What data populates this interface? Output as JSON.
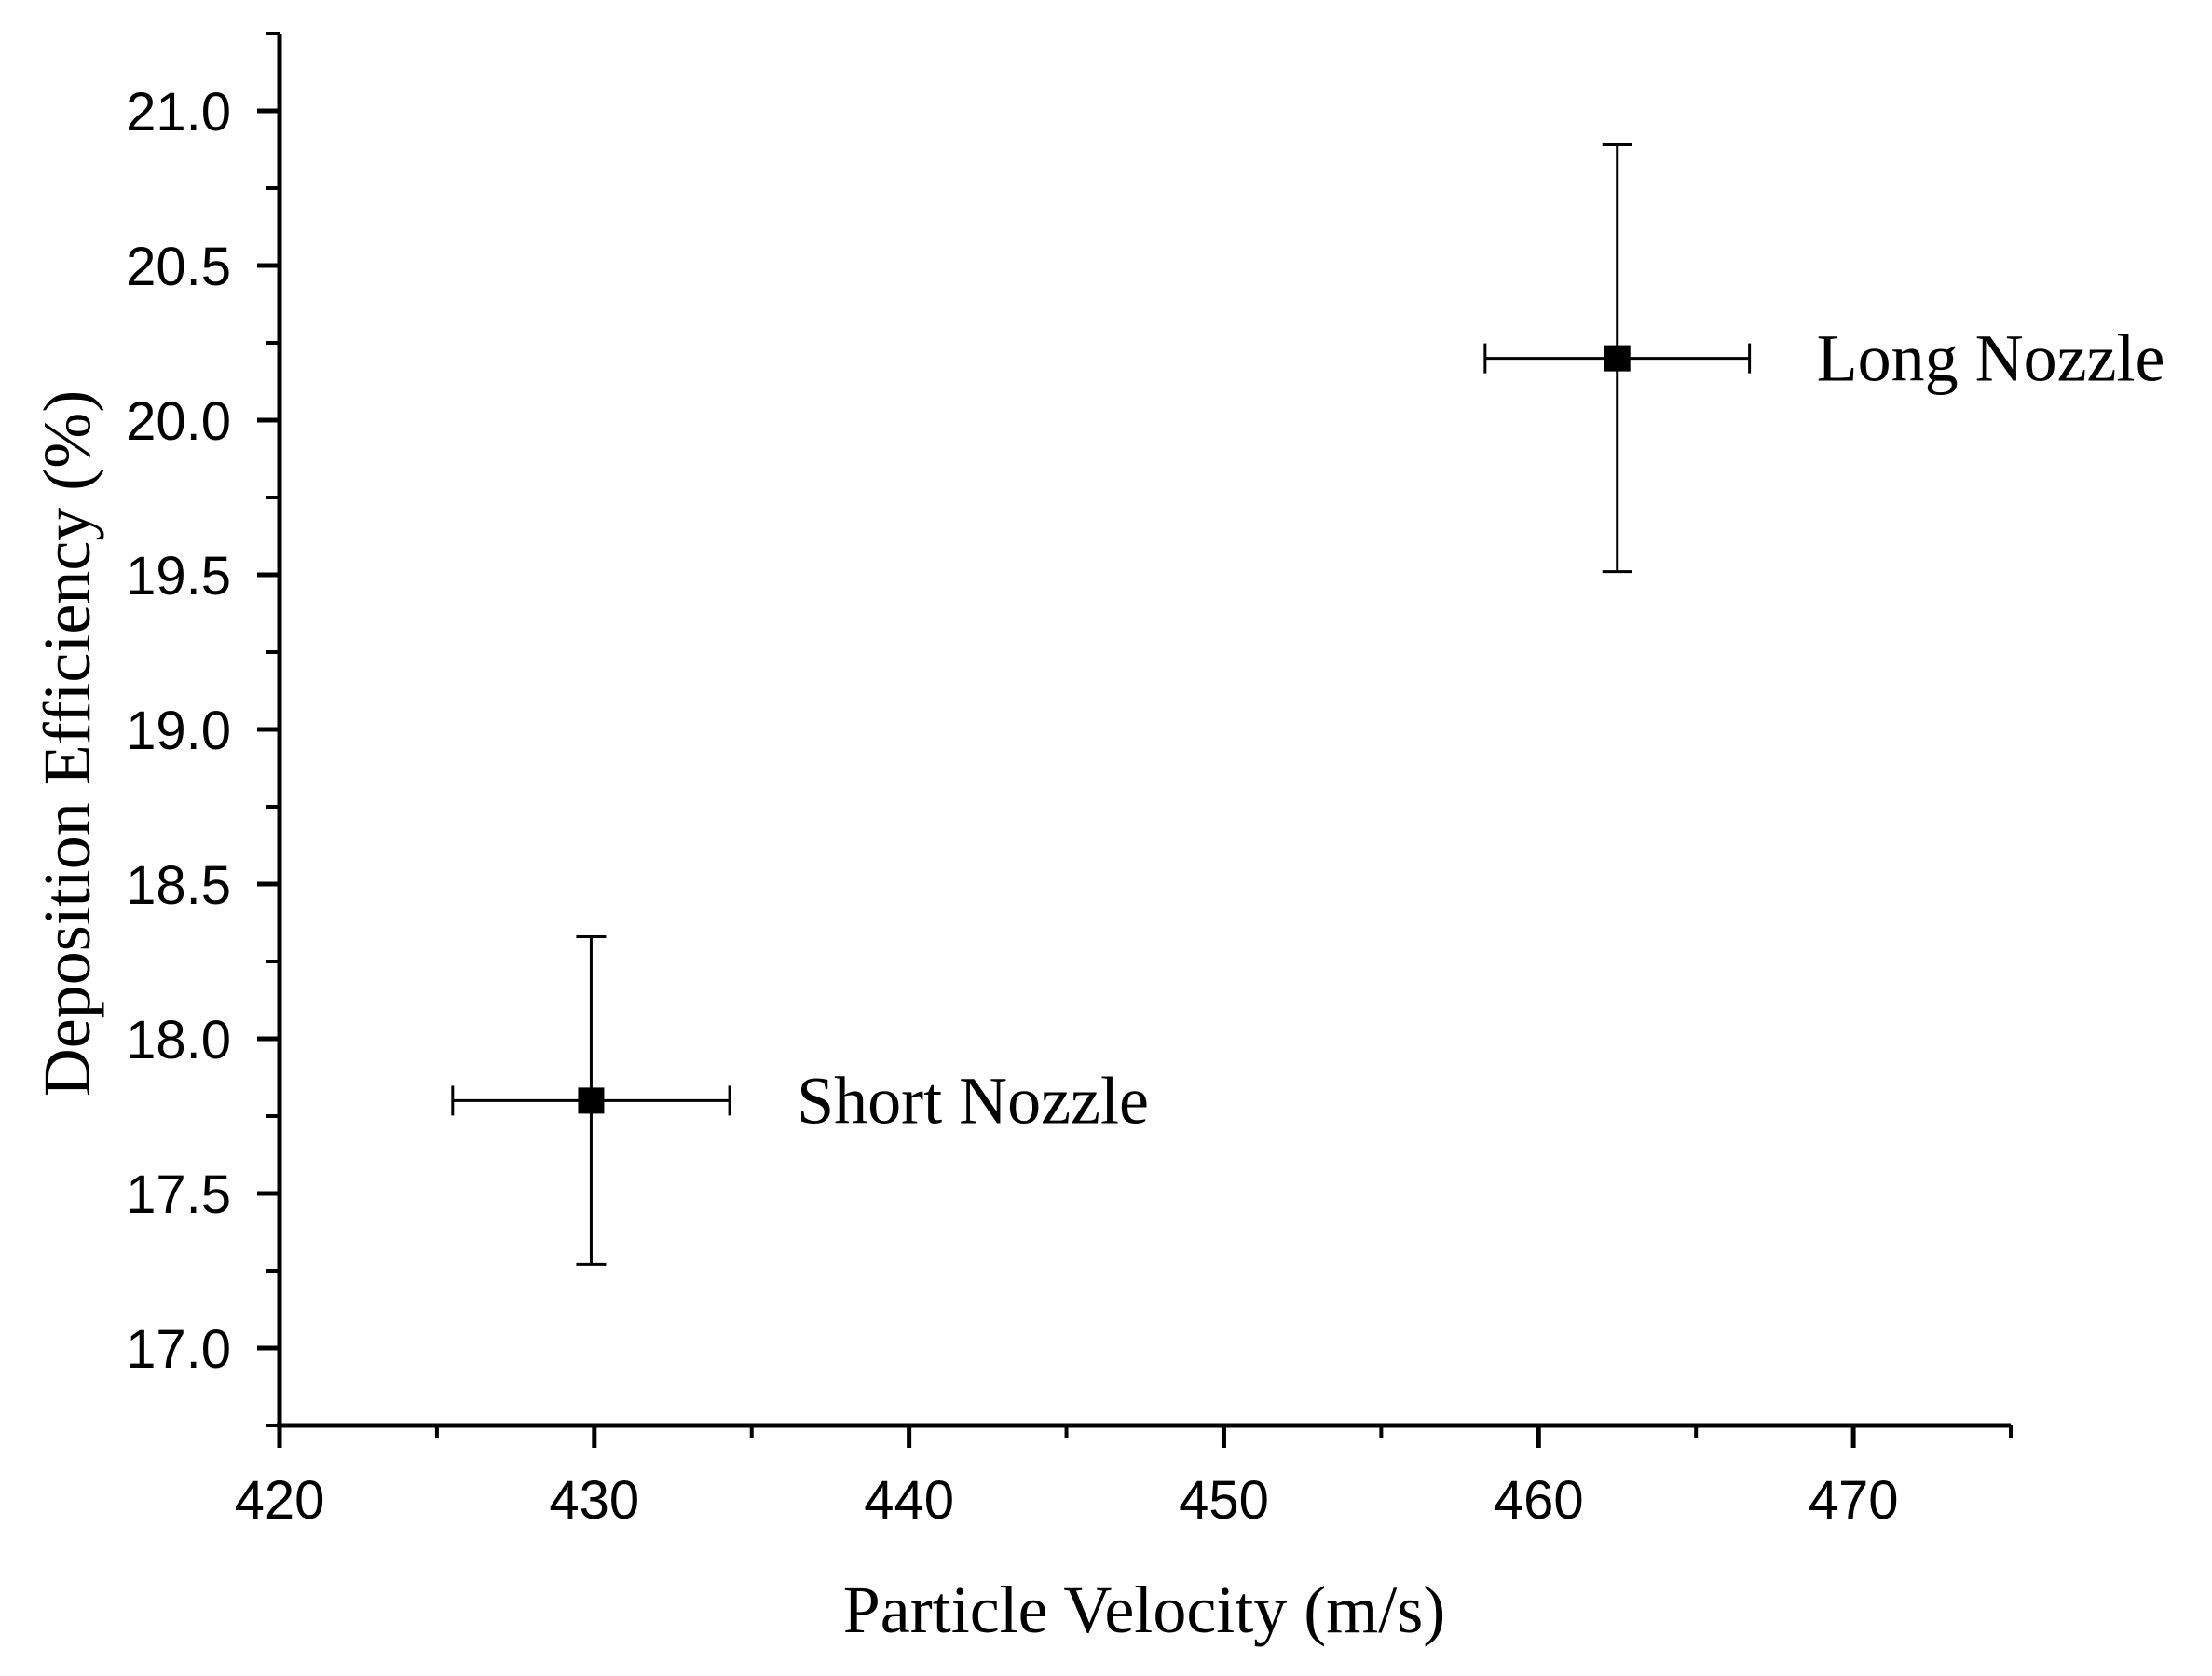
{
  "chart_data": {
    "type": "scatter",
    "title": "",
    "xlabel": "Particle Velocity (m/s)",
    "ylabel": "Deposition Efficiency (%)",
    "xlim": [
      420,
      475
    ],
    "ylim": [
      16.75,
      21.25
    ],
    "x_ticks": [
      420,
      430,
      440,
      450,
      460,
      470
    ],
    "x_tick_labels": [
      "420",
      "430",
      "440",
      "450",
      "460",
      "470"
    ],
    "x_minor_ticks": [
      425,
      435,
      445,
      455,
      465,
      475
    ],
    "y_ticks": [
      17.0,
      17.5,
      18.0,
      18.5,
      19.0,
      19.5,
      20.0,
      20.5,
      21.0
    ],
    "y_tick_labels": [
      "17.0",
      "17.5",
      "18.0",
      "18.5",
      "19.0",
      "19.5",
      "20.0",
      "20.5",
      "21.0"
    ],
    "y_minor_ticks": [
      16.75,
      17.25,
      17.75,
      18.25,
      18.75,
      19.25,
      19.75,
      20.25,
      20.75,
      21.25
    ],
    "grid": false,
    "marker": "square",
    "color": "#000000",
    "points": [
      {
        "label": "Short Nozzle",
        "x": 429.9,
        "y": 17.8,
        "x_err": 4.4,
        "y_err_low": 0.53,
        "y_err_high": 0.53
      },
      {
        "label": "Long Nozzle",
        "x": 462.5,
        "y": 20.2,
        "x_err": 4.2,
        "y_err_low": 0.69,
        "y_err_high": 0.69
      }
    ]
  }
}
